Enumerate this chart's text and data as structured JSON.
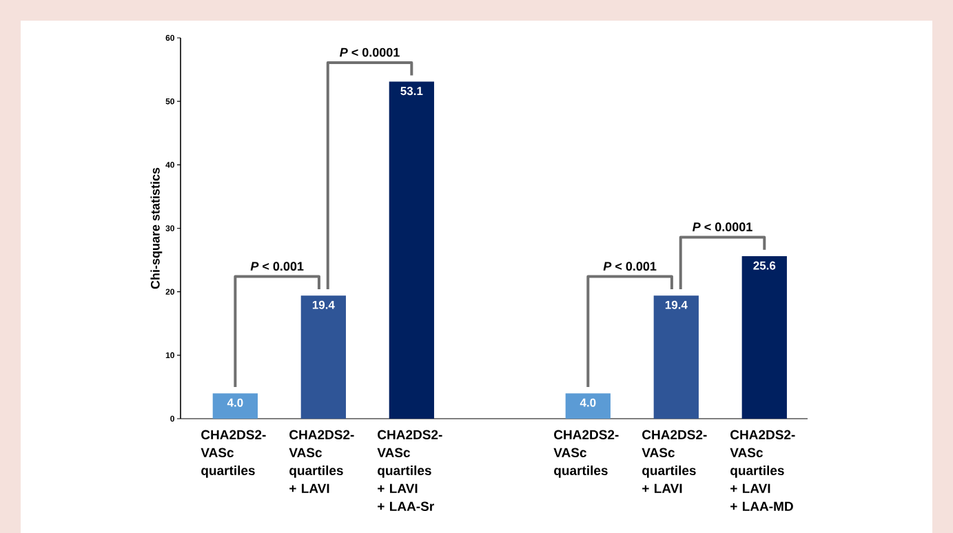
{
  "chart_data": {
    "type": "bar",
    "ylabel": "Chi-square statistics",
    "categories": [
      "CHA2DS2-VASc quartiles",
      "CHA2DS2-VASc quartiles + LAVI",
      "CHA2DS2-VASc quartiles + LAVI + LAA-Sr",
      null,
      "CHA2DS2-VASc quartiles",
      "CHA2DS2-VASc quartiles + LAVI",
      "CHA2DS2-VASc quartiles + LAVI + LAA-MD"
    ],
    "values": [
      4.0,
      19.4,
      53.1,
      null,
      4.0,
      19.4,
      25.6
    ],
    "colors": [
      "#5b9bd5",
      "#2f5597",
      "#002060",
      null,
      "#5b9bd5",
      "#2f5597",
      "#002060"
    ],
    "value_labels": [
      "4.0",
      "19.4",
      "53.1",
      null,
      "4.0",
      "19.4",
      "25.6"
    ],
    "ylim": [
      0,
      60
    ],
    "yticks": [
      0,
      10,
      20,
      30,
      40,
      50,
      60
    ],
    "annotations": [
      "*P* < 0.001",
      "*P* < 0.0001",
      "*P* < 0.001",
      "*P* < 0.0001"
    ]
  }
}
